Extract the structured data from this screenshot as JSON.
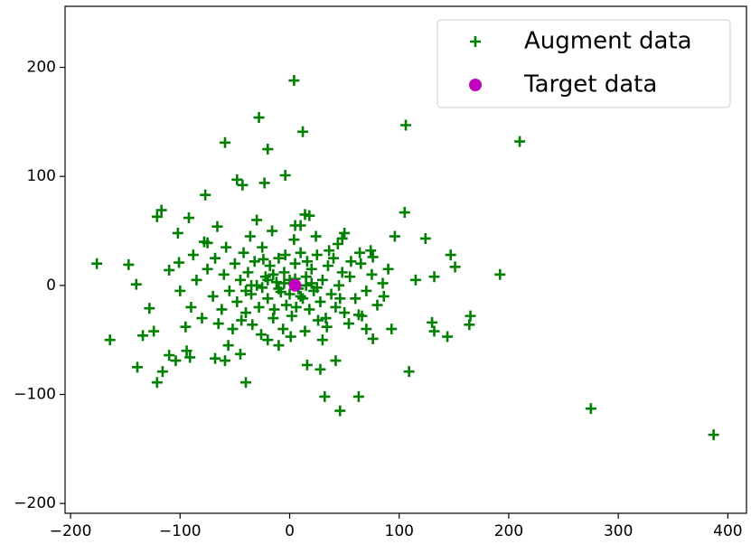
{
  "chart_data": {
    "type": "scatter",
    "xlim": [
      -205,
      417
    ],
    "ylim": [
      -209,
      256
    ],
    "xticks": [
      {
        "value": -200,
        "label": "−200"
      },
      {
        "value": -100,
        "label": "−100"
      },
      0,
      100,
      200,
      300,
      400
    ],
    "yticks": [
      {
        "value": -200,
        "label": "−200"
      },
      {
        "value": -100,
        "label": "−100"
      },
      0,
      100,
      200
    ],
    "legend": "upper right",
    "series": [
      {
        "name": "Augment data",
        "color": "#008000",
        "marker": "plus",
        "x": [
          -176,
          -164,
          -147,
          -140,
          -139,
          -134,
          -128,
          -124,
          -121,
          -121,
          -117,
          -116,
          -110,
          -102,
          -92,
          -101,
          -110,
          -104,
          -94,
          -91,
          -77,
          -59,
          -48,
          -43,
          -28,
          -20,
          -23,
          -4,
          4,
          12,
          14,
          18,
          5,
          106,
          210,
          105,
          124,
          147,
          151,
          192,
          115,
          132,
          165,
          164,
          144,
          130,
          132,
          109,
          93,
          76,
          63,
          63,
          46,
          32,
          28,
          16,
          42,
          275,
          387,
          -40,
          -45,
          -59,
          -68,
          -20,
          1,
          74,
          96,
          48,
          -75,
          -66,
          -60,
          -55,
          -50,
          -48,
          -45,
          -42,
          -40,
          -38,
          -35,
          -32,
          -30,
          -28,
          -25,
          -22,
          -20,
          -18,
          -15,
          -12,
          -10,
          -8,
          -5,
          -3,
          0,
          2,
          5,
          8,
          10,
          12,
          15,
          18,
          20,
          22,
          25,
          28,
          30,
          33,
          35,
          38,
          40,
          42,
          45,
          48,
          50,
          55,
          60,
          65,
          70,
          75,
          80,
          85,
          -70,
          -75,
          -80,
          -85,
          -90,
          -65,
          -58,
          -52,
          -36,
          -26,
          -16,
          -6,
          4,
          14,
          24,
          34,
          44,
          54,
          64,
          -95,
          -88,
          -68,
          -62,
          -44,
          -34,
          -24,
          -14,
          -4,
          6,
          16,
          26,
          36,
          46,
          56,
          66,
          76,
          86,
          -100,
          -78,
          -56,
          -30,
          -10,
          10,
          30,
          50,
          70,
          90,
          -20,
          -25,
          -15,
          -10,
          -5,
          0,
          5,
          10,
          15,
          -35,
          -40,
          20,
          25
        ],
        "values": [
          20,
          -50,
          19,
          1,
          -75,
          -46,
          -21,
          -42,
          63,
          -89,
          69,
          -79,
          14,
          48,
          62,
          21,
          -64,
          -69,
          -60,
          -66,
          83,
          131,
          97,
          92,
          154,
          125,
          94,
          101,
          188,
          141,
          65,
          64,
          55,
          147,
          132,
          67,
          43,
          28,
          17,
          10,
          5,
          8,
          -28,
          -36,
          -47,
          -34,
          -42,
          -79,
          -40,
          -49,
          -27,
          -102,
          -115,
          -102,
          -77,
          -73,
          -69,
          -113,
          -137,
          -89,
          -63,
          -69,
          -67,
          -50,
          -47,
          32,
          45,
          43,
          39,
          54,
          10,
          -5,
          20,
          -15,
          5,
          30,
          -25,
          12,
          -8,
          22,
          0,
          -20,
          35,
          8,
          -12,
          18,
          -30,
          3,
          25,
          -6,
          12,
          -18,
          5,
          -28,
          20,
          -3,
          30,
          -12,
          8,
          -22,
          15,
          -5,
          28,
          -15,
          5,
          -30,
          18,
          -8,
          25,
          -20,
          0,
          12,
          -25,
          8,
          -12,
          20,
          -5,
          10,
          -18,
          2,
          -10,
          15,
          -30,
          5,
          -20,
          -35,
          35,
          -40,
          45,
          -45,
          50,
          -40,
          42,
          -42,
          45,
          -38,
          38,
          -35,
          30,
          -38,
          28,
          25,
          -22,
          -32,
          -36,
          24,
          -22,
          28,
          -20,
          22,
          -32,
          32,
          -12,
          22,
          -28,
          26,
          -10,
          -5,
          40,
          -55,
          60,
          -55,
          55,
          -50,
          48,
          -40,
          15,
          5,
          -2,
          10,
          -3,
          2,
          -8,
          6,
          -10,
          0,
          0,
          -5,
          2,
          -2
        ]
      },
      {
        "name": "Target data",
        "color": "#bf00bf",
        "marker": "circle",
        "x": [
          5
        ],
        "values": [
          0
        ]
      }
    ]
  }
}
